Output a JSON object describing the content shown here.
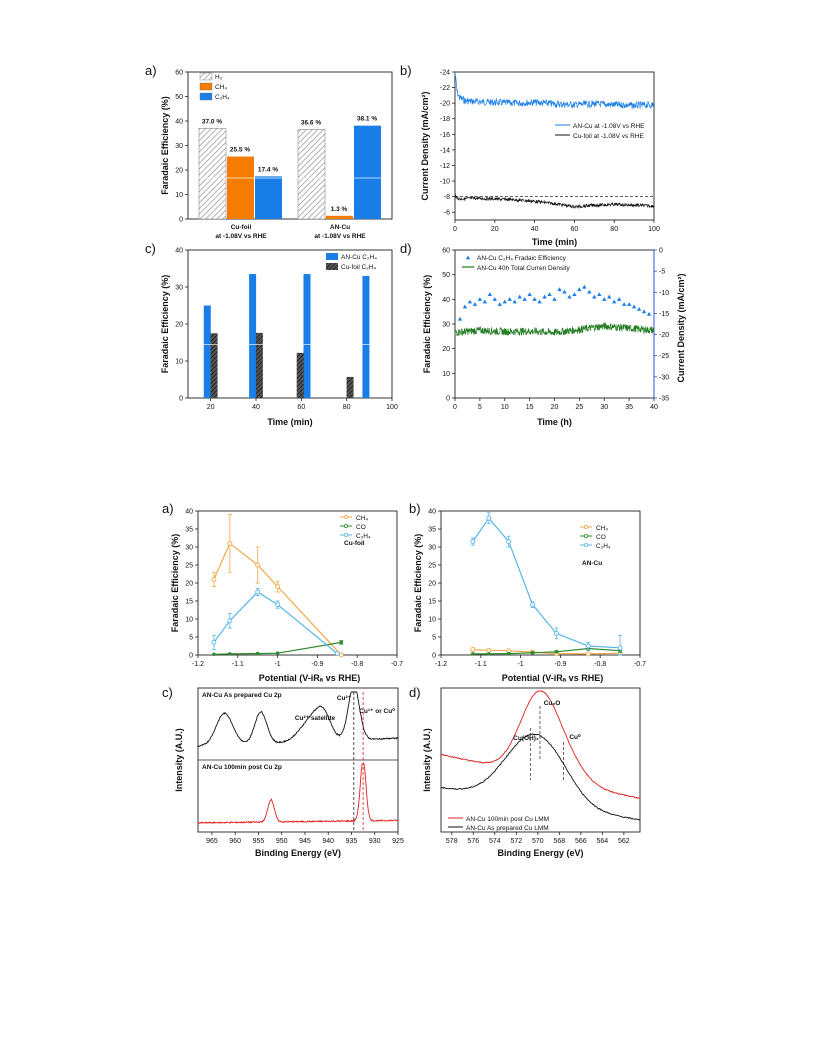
{
  "colors": {
    "orange": "#f47c00",
    "blue": "#1a7ee8",
    "light_blue": "#58b6e8",
    "tan": "#f0a848",
    "green": "#2e8b2e",
    "dark_green": "#1f7a1f",
    "red": "#e02020",
    "black": "#111111",
    "hatch": "#999999"
  },
  "chart_data": [
    {
      "id": "fig1a",
      "panel": "a)",
      "type": "bar",
      "ylabel": "Faradaic Efficiency (%)",
      "ylim": [
        0,
        60
      ],
      "yticks": [
        0,
        10,
        20,
        30,
        40,
        50,
        60
      ],
      "categories": [
        "Cu-foil",
        "AN-Cu"
      ],
      "category_labels": [
        [
          "Cu-foil",
          "at -1.08V vs RHE"
        ],
        [
          "AN-Cu",
          "at -1.08V vs RHE"
        ]
      ],
      "series": [
        {
          "name": "H₂",
          "values": [
            37.0,
            36.6
          ],
          "labels": [
            "37.0 %",
            "36.6 %"
          ],
          "style": "hatch"
        },
        {
          "name": "CH₄",
          "values": [
            25.5,
            1.3
          ],
          "labels": [
            "25.5 %",
            "1.3 %"
          ],
          "style": "orange"
        },
        {
          "name": "C₂H₄",
          "values": [
            17.4,
            38.1
          ],
          "labels": [
            "17.4 %",
            "38.1 %"
          ],
          "style": "blue"
        }
      ]
    },
    {
      "id": "fig1b",
      "panel": "b)",
      "type": "line",
      "xlabel": "Time (min)",
      "ylabel": "Current Density (mA/cm²)",
      "xlim": [
        0,
        100
      ],
      "ylim": [
        -24,
        -5
      ],
      "xticks": [
        0,
        20,
        40,
        60,
        80,
        100
      ],
      "yticks": [
        -24,
        -22,
        -20,
        -18,
        -16,
        -14,
        -12,
        -10,
        -8,
        -6
      ],
      "y_inverted": true,
      "series": [
        {
          "name": "AN-Cu at -1.08V vs RHE",
          "color": "blue",
          "x": [
            0,
            1,
            2,
            5,
            10,
            20,
            30,
            40,
            50,
            60,
            70,
            80,
            90,
            100
          ],
          "y": [
            -24.0,
            -21.5,
            -20.8,
            -20.3,
            -20.2,
            -20.1,
            -20.0,
            -20.1,
            -19.9,
            -19.8,
            -19.9,
            -19.8,
            -19.7,
            -19.8
          ],
          "noise": 0.45
        },
        {
          "name": "Cu-foil at -1.08V vs RHE",
          "color": "black",
          "x": [
            0,
            1,
            3,
            10,
            20,
            30,
            40,
            50,
            60,
            70,
            80,
            90,
            100
          ],
          "y": [
            -8.3,
            -7.8,
            -7.7,
            -7.8,
            -7.7,
            -7.6,
            -7.4,
            -7.1,
            -6.7,
            -6.9,
            -7.0,
            -6.9,
            -6.8
          ],
          "noise": 0.2
        }
      ],
      "reference_line": -8
    },
    {
      "id": "fig1c",
      "panel": "c)",
      "type": "bar",
      "xlabel": "Time (min)",
      "ylabel": "Faradaic Efficiency (%)",
      "xlim": [
        10,
        100
      ],
      "ylim": [
        0,
        40
      ],
      "xticks": [
        20,
        40,
        60,
        80,
        100
      ],
      "yticks": [
        0,
        10,
        20,
        30,
        40
      ],
      "series": [
        {
          "name": "AN-Cu C₂H₄",
          "style": "blue",
          "x": [
            18.5,
            38.5,
            62.5,
            88.5
          ],
          "values": [
            25.0,
            33.5,
            33.5,
            33.0
          ]
        },
        {
          "name": "Cu-foil C₂H₄",
          "style": "hatch_dark",
          "x": [
            21.5,
            41.5,
            59.5,
            81.5
          ],
          "values": [
            17.5,
            17.6,
            12.2,
            5.7
          ]
        }
      ]
    },
    {
      "id": "fig1d",
      "panel": "d)",
      "type": "scatter",
      "xlabel": "Time (h)",
      "ylabel": "Faradaic Efficiency (%)",
      "y2label": "Current Density (mA/cm²)",
      "xlim": [
        0,
        40
      ],
      "ylim": [
        0,
        60
      ],
      "y2lim": [
        -35,
        0
      ],
      "xticks": [
        0,
        5,
        10,
        15,
        20,
        25,
        30,
        35,
        40
      ],
      "yticks": [
        0,
        10,
        20,
        30,
        40,
        50,
        60
      ],
      "y2ticks": [
        0,
        -5,
        -10,
        -15,
        -20,
        -25,
        -30,
        -35
      ],
      "series": [
        {
          "name": "AN-Cu C₂H₄ Fradaic Efficiency",
          "color": "blue",
          "axis": "left",
          "marker": "triangle",
          "x": [
            1,
            2,
            3,
            4,
            5,
            6,
            7,
            8,
            9,
            10,
            11,
            12,
            13,
            14,
            15,
            16,
            17,
            18,
            19,
            20,
            21,
            22,
            23,
            24,
            25,
            26,
            27,
            28,
            29,
            30,
            31,
            32,
            33,
            34,
            35,
            36,
            37,
            38,
            39
          ],
          "y": [
            32,
            37,
            39,
            38,
            40,
            39,
            42,
            40,
            38,
            39,
            40,
            39,
            41,
            40,
            42,
            40,
            39,
            41,
            42,
            40,
            44,
            43,
            41,
            42,
            44,
            45,
            43,
            41,
            42,
            40,
            41,
            39,
            40,
            38,
            38,
            37,
            36,
            35,
            34
          ]
        },
        {
          "name": "AN-Cu 40h Total Curren Density",
          "color": "dark_green",
          "axis": "right",
          "x": [
            0,
            5,
            10,
            15,
            20,
            25,
            30,
            35,
            40
          ],
          "y": [
            -19.5,
            -19.0,
            -19.3,
            -19.2,
            -19.5,
            -18.8,
            -18.0,
            -18.5,
            -19.0
          ],
          "noise": 0.9
        }
      ]
    },
    {
      "id": "fig2a",
      "panel": "a)",
      "type": "line",
      "xlabel": "Potential (V-iRₐ vs RHE)",
      "ylabel": "Faradaic Efficiency (%)",
      "annotation": "Cu-foil",
      "xlim": [
        -1.2,
        -0.7
      ],
      "ylim": [
        0,
        40
      ],
      "xticks": [
        -1.2,
        -1.1,
        -1.0,
        -0.9,
        -0.8,
        -0.7
      ],
      "yticks": [
        0,
        5,
        10,
        15,
        20,
        25,
        30,
        35,
        40
      ],
      "series": [
        {
          "name": "CH₄",
          "color": "tan",
          "x": [
            -1.16,
            -1.12,
            -1.05,
            -1.0,
            -0.84
          ],
          "y": [
            21,
            31,
            25,
            19,
            0
          ],
          "err": [
            2,
            8,
            5,
            1.5,
            0
          ]
        },
        {
          "name": "CO",
          "color": "green",
          "x": [
            -1.16,
            -1.12,
            -1.05,
            -1.0,
            -0.84
          ],
          "y": [
            0.2,
            0.3,
            0.4,
            0.5,
            3.5
          ],
          "err": [
            0,
            0,
            0,
            0,
            0.5
          ]
        },
        {
          "name": "C₂H₄",
          "color": "light_blue",
          "x": [
            -1.16,
            -1.12,
            -1.05,
            -1.0,
            -0.85
          ],
          "y": [
            3.5,
            9.5,
            17.5,
            14,
            0.4
          ],
          "err": [
            2,
            2,
            1,
            1,
            0
          ]
        }
      ]
    },
    {
      "id": "fig2b",
      "panel": "b)",
      "type": "line",
      "xlabel": "Potential (V-iRₐ vs RHE)",
      "ylabel": "Faradaic Efficiency (%)",
      "annotation": "AN-Cu",
      "xlim": [
        -1.2,
        -0.7
      ],
      "ylim": [
        0,
        40
      ],
      "xticks": [
        -1.2,
        -1.1,
        -1.0,
        -0.9,
        -0.8,
        -0.7
      ],
      "yticks": [
        0,
        5,
        10,
        15,
        20,
        25,
        30,
        35,
        40
      ],
      "series": [
        {
          "name": "CH₄",
          "color": "tan",
          "x": [
            -1.12,
            -1.08,
            -1.03,
            -0.97,
            -0.91,
            -0.83,
            -0.75
          ],
          "y": [
            1.5,
            1.3,
            1.2,
            0.8,
            0.4,
            0.3,
            0.5
          ],
          "err": [
            0.5,
            0.3,
            0.3,
            0.2,
            0.1,
            0.1,
            0.2
          ]
        },
        {
          "name": "CO",
          "color": "green",
          "x": [
            -1.12,
            -1.08,
            -1.03,
            -0.97,
            -0.91,
            -0.83,
            -0.75
          ],
          "y": [
            0.3,
            0.3,
            0.4,
            0.6,
            0.9,
            1.8,
            1.2
          ],
          "err": [
            0.1,
            0.1,
            0.1,
            0.2,
            0.3,
            0.5,
            0.5
          ]
        },
        {
          "name": "C₂H₄",
          "color": "light_blue",
          "x": [
            -1.12,
            -1.08,
            -1.03,
            -0.97,
            -0.91,
            -0.83,
            -0.75
          ],
          "y": [
            31.5,
            38,
            31.5,
            14,
            6,
            2.5,
            2
          ],
          "err": [
            1,
            1.5,
            1.5,
            0.8,
            1.5,
            1,
            3.5
          ]
        }
      ]
    },
    {
      "id": "fig2c",
      "panel": "c)",
      "type": "line",
      "xlabel": "Binding Energy (eV)",
      "ylabel": "Intensity (A.U.)",
      "xlim": [
        968,
        925
      ],
      "xticks": [
        965,
        960,
        955,
        950,
        945,
        940,
        935,
        930,
        925
      ],
      "x_inverted": true,
      "labels": [
        "AN-Cu As prepared Cu 2p",
        "AN-Cu 100min post Cu 2p"
      ],
      "annotations": [
        "Cu²⁺",
        "Cu²⁺ satellite",
        "Cu¹⁺ or Cu⁰"
      ],
      "series": [
        {
          "name": "AN-Cu As prepared Cu 2p",
          "color": "black",
          "baseline": 0.15,
          "noise": 0.02,
          "peaks": [
            [
              962.3,
              0.5,
              1.8
            ],
            [
              954.5,
              0.5,
              1.3
            ],
            [
              943.5,
              0.35,
              2.5
            ],
            [
              941.0,
              0.3,
              1.6
            ],
            [
              934.5,
              0.85,
              1.2
            ]
          ]
        },
        {
          "name": "AN-Cu 100min post Cu 2p",
          "color": "red",
          "baseline": 0.08,
          "noise": 0.02,
          "peaks": [
            [
              952.3,
              0.35,
              0.7
            ],
            [
              932.5,
              0.95,
              0.6
            ]
          ]
        }
      ],
      "reference_lines": [
        934.5,
        932.5
      ]
    },
    {
      "id": "fig2d",
      "panel": "d)",
      "type": "line",
      "xlabel": "Binding Energy (eV)",
      "ylabel": "Intensity (A.U.)",
      "xlim": [
        579,
        560.5
      ],
      "xticks": [
        578,
        576,
        574,
        572,
        570,
        568,
        566,
        564,
        562
      ],
      "x_inverted": true,
      "annotations": [
        "Cu₂O",
        "Cu(OH)₂",
        "Cu⁰"
      ],
      "series": [
        {
          "name": "AN-Cu 100min post Cu LMM",
          "color": "red",
          "y_end": [
            0.55,
            0.22
          ],
          "peaks": [
            [
              569.8,
              0.62,
              1.8
            ],
            [
              567.0,
              0.1,
              1.5
            ]
          ],
          "noise": 0.008
        },
        {
          "name": "AN-Cu As prepared Cu LMM",
          "color": "black",
          "y_end": [
            0.3,
            0.06
          ],
          "peaks": [
            [
              570.7,
              0.45,
              2.5
            ],
            [
              568.2,
              0.12,
              2.0
            ]
          ],
          "noise": 0.008
        }
      ],
      "reference_lines": [
        569.8,
        570.7,
        567.6
      ]
    }
  ]
}
